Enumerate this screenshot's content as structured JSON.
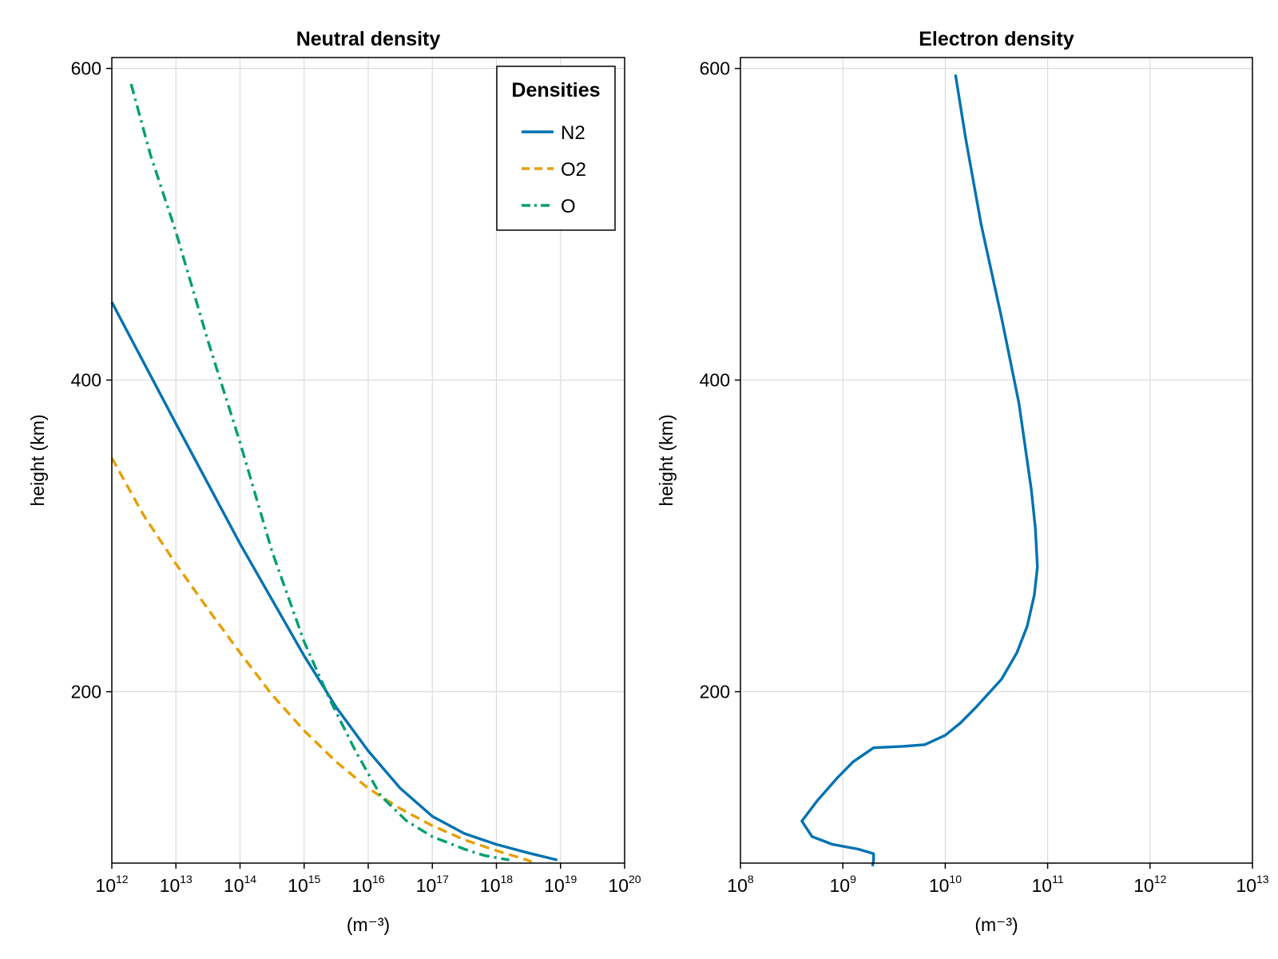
{
  "chart_data": [
    {
      "type": "line",
      "title": "Neutral density",
      "xlabel": "(m⁻³)",
      "ylabel": "height (km)",
      "xscale": "log10",
      "xlim": [
        12,
        20
      ],
      "xtick_exponents": [
        12,
        13,
        14,
        15,
        16,
        17,
        18,
        19,
        20
      ],
      "xtick_base": "10",
      "ylim": [
        90,
        607
      ],
      "yticks": [
        200,
        400,
        600
      ],
      "grid": true,
      "legend": {
        "title": "Densities",
        "placement": "top-right"
      },
      "series": [
        {
          "name": "N2",
          "color": "#0072b2",
          "style": "solid",
          "points": [
            [
              12,
              450
            ],
            [
              13,
              372
            ],
            [
              14,
              295
            ],
            [
              15,
              223
            ],
            [
              15.5,
              190
            ],
            [
              16,
              162
            ],
            [
              16.5,
              138
            ],
            [
              17,
              120
            ],
            [
              17.5,
              109
            ],
            [
              18,
              102
            ],
            [
              18.5,
              96.5
            ],
            [
              18.95,
              92
            ]
          ]
        },
        {
          "name": "O2",
          "color": "#e69f00",
          "style": "dashed",
          "points": [
            [
              12,
              350
            ],
            [
              12.5,
              313
            ],
            [
              13,
              282
            ],
            [
              13.5,
              253
            ],
            [
              14,
              225
            ],
            [
              14.5,
              198
            ],
            [
              15,
              175
            ],
            [
              15.5,
              155
            ],
            [
              16,
              138
            ],
            [
              16.5,
              125
            ],
            [
              17,
              114
            ],
            [
              17.5,
              105
            ],
            [
              18,
              98
            ],
            [
              18.4,
              93
            ],
            [
              18.55,
              91
            ]
          ]
        },
        {
          "name": "O",
          "color": "#009e73",
          "style": "dashdot",
          "points": [
            [
              12.3,
              590
            ],
            [
              12.6,
              545
            ],
            [
              13,
              495
            ],
            [
              13.5,
              425
            ],
            [
              14,
              360
            ],
            [
              14.5,
              290
            ],
            [
              15,
              232
            ],
            [
              15.4,
              195
            ],
            [
              15.8,
              162
            ],
            [
              16.2,
              133
            ],
            [
              16.6,
              117
            ],
            [
              17,
              107
            ],
            [
              17.5,
              99
            ],
            [
              17.8,
              95
            ],
            [
              18.2,
              92
            ]
          ]
        }
      ]
    },
    {
      "type": "line",
      "title": "Electron density",
      "xlabel": "(m⁻³)",
      "ylabel": "height (km)",
      "xscale": "log10",
      "xlim": [
        8,
        13
      ],
      "xtick_exponents": [
        8,
        9,
        10,
        11,
        12,
        13
      ],
      "xtick_base": "10",
      "ylim": [
        90,
        607
      ],
      "yticks": [
        200,
        400,
        600
      ],
      "grid": true,
      "series": [
        {
          "name": "",
          "color": "#0072b2",
          "style": "solid",
          "points": [
            [
              10.1,
              596
            ],
            [
              10.2,
              555
            ],
            [
              10.35,
              500
            ],
            [
              10.55,
              440
            ],
            [
              10.72,
              385
            ],
            [
              10.84,
              330
            ],
            [
              10.88,
              305
            ],
            [
              10.9,
              280
            ],
            [
              10.87,
              262
            ],
            [
              10.8,
              242
            ],
            [
              10.7,
              225
            ],
            [
              10.55,
              208
            ],
            [
              10.3,
              190
            ],
            [
              10.15,
              180
            ],
            [
              10,
              172
            ],
            [
              9.8,
              166
            ],
            [
              9.6,
              165
            ],
            [
              9.3,
              164
            ],
            [
              9.1,
              155
            ],
            [
              8.95,
              145
            ],
            [
              8.75,
              130
            ],
            [
              8.6,
              117
            ],
            [
              8.7,
              107
            ],
            [
              8.9,
              102
            ],
            [
              9.15,
              99
            ],
            [
              9.3,
              96
            ],
            [
              9.3,
              92
            ],
            [
              9.29,
              88
            ]
          ]
        }
      ]
    }
  ]
}
